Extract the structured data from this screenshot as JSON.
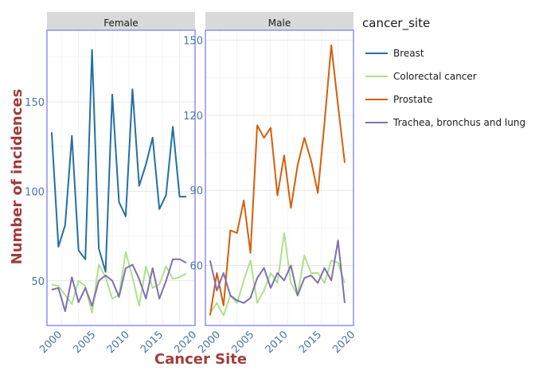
{
  "chart_data": {
    "type": "line",
    "xlabel": "Cancer Site",
    "ylabel": "Number of incidences",
    "legend": {
      "title": "cancer_site",
      "position": "right"
    },
    "colors": {
      "Breast": "#2370a3",
      "Colorectal cancer": "#b2df8a",
      "Prostate": "#d35f0a",
      "Trachea, bronchus and lung": "#7f6fb0"
    },
    "panels": [
      {
        "name": "Female",
        "xlim": [
          1998.3,
          2020.3
        ],
        "ylim": [
          25,
          190
        ],
        "x_ticks": [
          2000,
          2005,
          2010,
          2015,
          2020
        ],
        "y_ticks": [
          50,
          100,
          150
        ],
        "series": [
          {
            "name": "Breast",
            "x": [
              1999,
              2000,
              2001,
              2002,
              2003,
              2004,
              2005,
              2006,
              2007,
              2008,
              2009,
              2010,
              2011,
              2012,
              2013,
              2014,
              2015,
              2016,
              2017,
              2018,
              2019
            ],
            "y": [
              133,
              69,
              81,
              131,
              67,
              62,
              179,
              68,
              55,
              154,
              94,
              86,
              157,
              103,
              115,
              130,
              90,
              98,
              136,
              97,
              97
            ]
          },
          {
            "name": "Colorectal cancer",
            "x": [
              1999,
              2000,
              2001,
              2002,
              2003,
              2004,
              2005,
              2006,
              2007,
              2008,
              2009,
              2010,
              2011,
              2012,
              2013,
              2014,
              2015,
              2016,
              2017,
              2018,
              2019
            ],
            "y": [
              48,
              47,
              42,
              37,
              50,
              47,
              32,
              59,
              52,
              40,
              42,
              66,
              52,
              36,
              58,
              46,
              48,
              58,
              51,
              52,
              54
            ]
          },
          {
            "name": "Trachea, bronchus and lung",
            "x": [
              1999,
              2000,
              2001,
              2002,
              2003,
              2004,
              2005,
              2006,
              2007,
              2008,
              2009,
              2010,
              2011,
              2012,
              2013,
              2014,
              2015,
              2016,
              2017,
              2018,
              2019
            ],
            "y": [
              45,
              46,
              33,
              52,
              38,
              46,
              36,
              50,
              53,
              50,
              41,
              57,
              59,
              51,
              40,
              57,
              40,
              50,
              62,
              62,
              60
            ]
          }
        ]
      },
      {
        "name": "Male",
        "xlim": [
          1998.3,
          2020.3
        ],
        "ylim": [
          36,
          154
        ],
        "x_ticks": [
          2000,
          2005,
          2010,
          2015,
          2020
        ],
        "y_ticks": [
          60,
          90,
          120,
          150
        ],
        "series": [
          {
            "name": "Colorectal cancer",
            "x": [
              1999,
              2000,
              2001,
              2002,
              2003,
              2004,
              2005,
              2006,
              2007,
              2008,
              2009,
              2010,
              2011,
              2012,
              2013,
              2014,
              2015,
              2016,
              2017,
              2018,
              2019
            ],
            "y": [
              41,
              45,
              40,
              48,
              45,
              54,
              62,
              45,
              50,
              57,
              53,
              73,
              53,
              48,
              64,
              57,
              57,
              53,
              62,
              61,
              53
            ]
          },
          {
            "name": "Prostate",
            "x": [
              1999,
              2000,
              2001,
              2002,
              2003,
              2004,
              2005,
              2006,
              2007,
              2008,
              2009,
              2010,
              2011,
              2012,
              2013,
              2014,
              2015,
              2016,
              2017,
              2018,
              2019
            ],
            "y": [
              40,
              57,
              44,
              74,
              73,
              86,
              65,
              116,
              111,
              115,
              88,
              104,
              83,
              100,
              111,
              102,
              89,
              117,
              148,
              124,
              101
            ]
          },
          {
            "name": "Trachea, bronchus and lung",
            "x": [
              1999,
              2000,
              2001,
              2002,
              2003,
              2004,
              2005,
              2006,
              2007,
              2008,
              2009,
              2010,
              2011,
              2012,
              2013,
              2014,
              2015,
              2016,
              2017,
              2018,
              2019
            ],
            "y": [
              62,
              50,
              57,
              48,
              46,
              45,
              47,
              55,
              59,
              51,
              57,
              54,
              60,
              48,
              55,
              56,
              53,
              59,
              54,
              70,
              45
            ]
          }
        ]
      }
    ],
    "legend_entries": [
      "Breast",
      "Colorectal cancer",
      "Prostate",
      "Trachea, bronchus and lung"
    ]
  }
}
